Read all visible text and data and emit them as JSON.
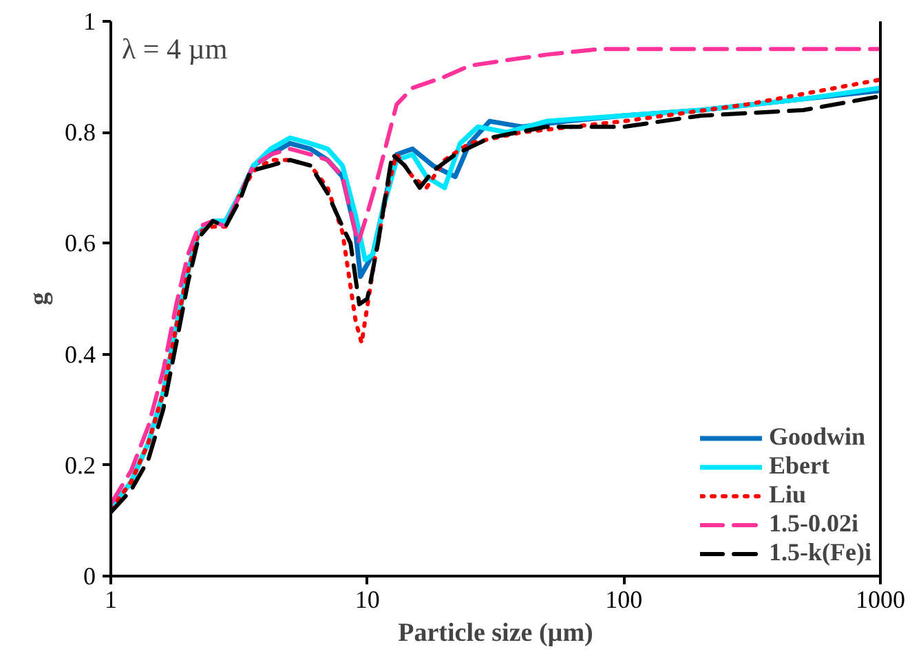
{
  "chart_data": {
    "type": "line",
    "xlabel": "Particle size (µm)",
    "ylabel": "g",
    "log": "x",
    "grid": false,
    "legend": "bottom right",
    "marker": "none",
    "xlim": [
      1,
      1000
    ],
    "xticks": [
      1,
      10,
      100,
      1000
    ],
    "ylim": [
      0,
      1
    ],
    "yticks": [
      0,
      0.2,
      0.4,
      0.6,
      0.8,
      1
    ],
    "annotations": [
      "λ = 4 µm"
    ],
    "series": [
      {
        "name": "Goodwin",
        "color": "#0070c0",
        "line_style": "solid",
        "x": [
          1,
          1.2,
          1.4,
          1.6,
          1.8,
          2,
          2.2,
          2.5,
          2.8,
          3.2,
          3.6,
          4.2,
          5,
          6,
          7,
          8,
          9,
          9.4,
          10.5,
          12,
          13,
          15,
          18,
          22,
          25,
          30,
          40,
          60,
          100,
          200,
          500,
          1000
        ],
        "values": [
          0.12,
          0.17,
          0.24,
          0.33,
          0.45,
          0.55,
          0.62,
          0.64,
          0.64,
          0.69,
          0.74,
          0.76,
          0.78,
          0.77,
          0.75,
          0.72,
          0.62,
          0.54,
          0.58,
          0.7,
          0.76,
          0.77,
          0.74,
          0.72,
          0.78,
          0.82,
          0.81,
          0.82,
          0.83,
          0.84,
          0.86,
          0.875
        ]
      },
      {
        "name": "Ebert",
        "color": "#00e5ff",
        "line_style": "solid",
        "x": [
          1,
          1.2,
          1.4,
          1.6,
          1.8,
          2,
          2.2,
          2.5,
          2.8,
          3.2,
          3.6,
          4.2,
          5,
          6,
          7,
          8,
          9,
          9.8,
          10.5,
          11.5,
          13,
          15,
          17,
          20,
          23,
          27,
          35,
          50,
          100,
          200,
          500,
          1000
        ],
        "values": [
          0.12,
          0.17,
          0.24,
          0.33,
          0.45,
          0.55,
          0.62,
          0.64,
          0.64,
          0.69,
          0.74,
          0.77,
          0.79,
          0.78,
          0.77,
          0.74,
          0.65,
          0.57,
          0.58,
          0.66,
          0.75,
          0.76,
          0.72,
          0.7,
          0.78,
          0.81,
          0.8,
          0.82,
          0.83,
          0.84,
          0.86,
          0.88
        ]
      },
      {
        "name": "Liu",
        "color": "#ff0000",
        "line_style": "dotted",
        "x": [
          1,
          1.2,
          1.4,
          1.6,
          1.8,
          2,
          2.2,
          2.5,
          2.8,
          3.2,
          3.6,
          4.2,
          5,
          6,
          7,
          8,
          9,
          9.5,
          10.5,
          12,
          13,
          15,
          17,
          20,
          25,
          40,
          100,
          300,
          1000
        ],
        "values": [
          0.12,
          0.17,
          0.24,
          0.33,
          0.45,
          0.55,
          0.62,
          0.63,
          0.63,
          0.69,
          0.73,
          0.75,
          0.75,
          0.74,
          0.7,
          0.62,
          0.46,
          0.42,
          0.55,
          0.7,
          0.76,
          0.72,
          0.7,
          0.75,
          0.78,
          0.8,
          0.82,
          0.85,
          0.895
        ]
      },
      {
        "name": "1.5-0.02i",
        "color": "#ff3399",
        "line_style": "dashed",
        "x": [
          1,
          1.2,
          1.4,
          1.6,
          1.8,
          2,
          2.2,
          2.5,
          2.8,
          3.2,
          3.6,
          4.2,
          5,
          6,
          7,
          8,
          9.2,
          9.8,
          11,
          13,
          15,
          20,
          25,
          35,
          50,
          80,
          1000
        ],
        "values": [
          0.13,
          0.19,
          0.27,
          0.37,
          0.49,
          0.58,
          0.63,
          0.64,
          0.63,
          0.69,
          0.74,
          0.76,
          0.77,
          0.76,
          0.75,
          0.72,
          0.6,
          0.64,
          0.72,
          0.85,
          0.88,
          0.9,
          0.92,
          0.93,
          0.94,
          0.95,
          0.95
        ]
      },
      {
        "name": "1.5-k(Fe)i",
        "color": "#000000",
        "line_style": "dashed",
        "x": [
          1,
          1.2,
          1.4,
          1.6,
          1.8,
          2,
          2.2,
          2.5,
          2.8,
          3.2,
          3.5,
          4.2,
          5,
          6,
          7,
          8,
          8.6,
          9.3,
          10,
          11,
          12.5,
          14,
          16,
          18,
          22,
          30,
          50,
          100,
          200,
          500,
          1000
        ],
        "values": [
          0.115,
          0.155,
          0.21,
          0.3,
          0.42,
          0.53,
          0.61,
          0.64,
          0.63,
          0.68,
          0.73,
          0.74,
          0.75,
          0.74,
          0.69,
          0.63,
          0.6,
          0.49,
          0.5,
          0.6,
          0.76,
          0.74,
          0.7,
          0.73,
          0.76,
          0.79,
          0.81,
          0.81,
          0.83,
          0.84,
          0.865
        ]
      }
    ]
  }
}
